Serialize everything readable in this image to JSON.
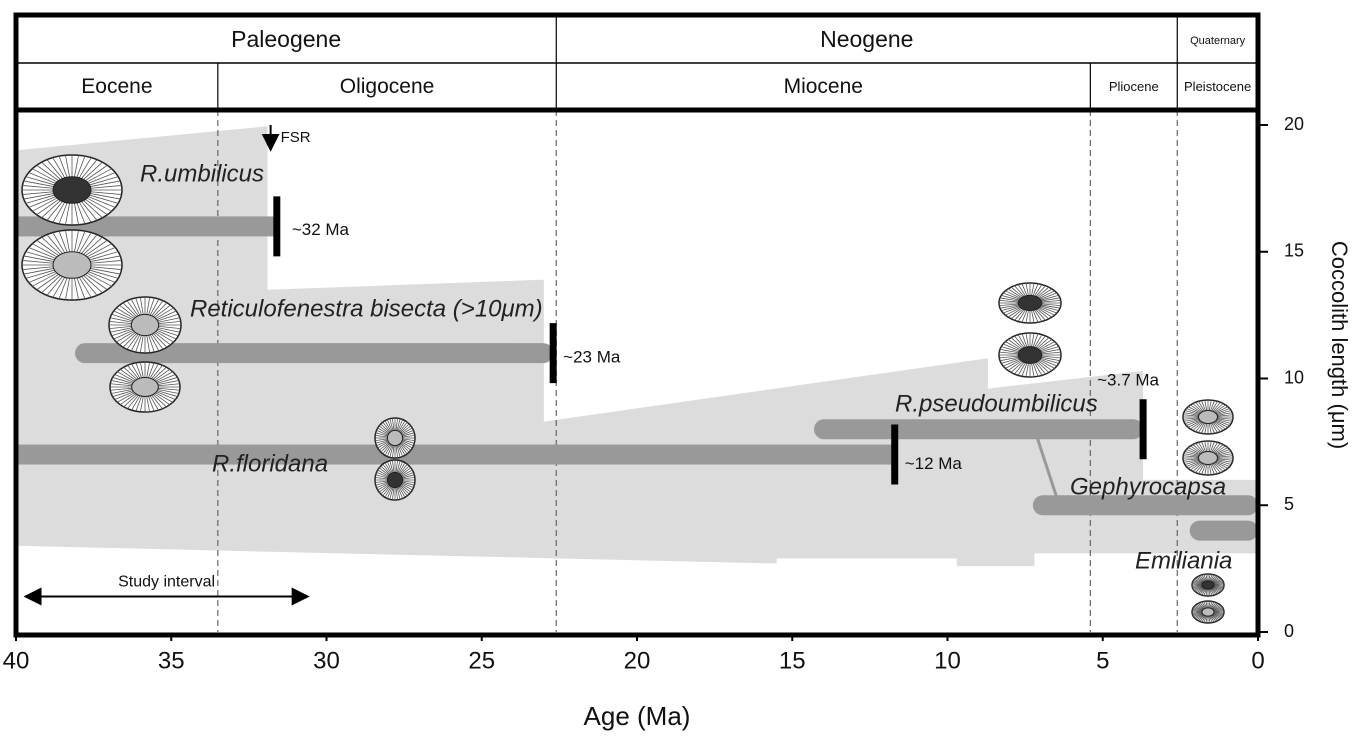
{
  "chart_data": {
    "type": "range",
    "x_label": "Age (Ma)",
    "y_label": "Coccolith length  (μm)",
    "xlim": [
      40,
      0
    ],
    "xticks": [
      40,
      35,
      30,
      25,
      20,
      15,
      10,
      5,
      0
    ],
    "ylim": [
      0,
      20
    ],
    "yticks": [
      0,
      5,
      10,
      15,
      20
    ],
    "periods": [
      {
        "name": "Paleogene",
        "start": 40,
        "end": 22.6
      },
      {
        "name": "Neogene",
        "start": 22.6,
        "end": 2.6
      },
      {
        "name": "Quaternary",
        "start": 2.6,
        "end": 0
      }
    ],
    "epochs": [
      {
        "name": "Eocene",
        "start": 40,
        "end": 33.5
      },
      {
        "name": "Oligocene",
        "start": 33.5,
        "end": 22.6
      },
      {
        "name": "Miocene",
        "start": 22.6,
        "end": 5.4
      },
      {
        "name": "Pliocene",
        "start": 5.4,
        "end": 2.6
      },
      {
        "name": "Pleistocene",
        "start": 2.6,
        "end": 0
      }
    ],
    "envelope": {
      "color": "#dcdcdc",
      "x": [
        40,
        31.9,
        31.9,
        23.0,
        23.0,
        8.7,
        8.7,
        3.7,
        3.7,
        0,
        0,
        7.2,
        7.2,
        9.7,
        9.7,
        15.5,
        15.5,
        40
      ],
      "y": [
        19.0,
        19.95,
        13.5,
        13.9,
        8.3,
        10.8,
        9.6,
        10.3,
        6.0,
        6.0,
        3.1,
        3.1,
        2.6,
        2.6,
        2.9,
        2.9,
        2.7,
        3.4
      ]
    },
    "series": [
      {
        "name": "R.umbilicus",
        "start": 40,
        "end": 31.6,
        "y": 16,
        "color": "#999999",
        "event_label": "~32 Ma"
      },
      {
        "name": "Reticulofenestra bisecta (>10μm)",
        "start": 38.1,
        "end": 22.7,
        "y": 11,
        "color": "#999999",
        "event_label": "~23 Ma"
      },
      {
        "name": "R.floridana",
        "start": 40,
        "end": 11.7,
        "y": 7,
        "color": "#999999",
        "event_label": "~12 Ma"
      },
      {
        "name": "R.pseudoumbilicus",
        "start": 14.3,
        "end": 3.7,
        "y": 8,
        "color": "#999999",
        "event_label": "~3.7 Ma"
      },
      {
        "name": "Gephyrocapsa",
        "start": 7.25,
        "end": 0,
        "y": 5,
        "color": "#999999"
      },
      {
        "name": "Emiliania",
        "start": 2.2,
        "end": 0,
        "y": 4,
        "color": "#999999"
      }
    ],
    "event_color": "#000000",
    "lineage": {
      "x": [
        7.2,
        6.4
      ],
      "y": [
        8,
        5
      ],
      "color": "#999999"
    },
    "fsr": {
      "label": "FSR",
      "x": 31.8
    },
    "study_interval": {
      "label": "Study interval",
      "x": [
        39.7,
        30.6
      ],
      "y": 1.4
    }
  }
}
